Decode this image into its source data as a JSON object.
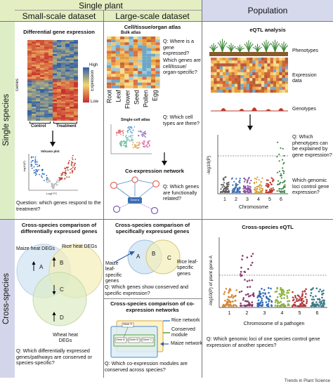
{
  "headers": {
    "single_plant": "Single plant",
    "small_scale": "Small-scale dataset",
    "large_scale": "Large-scale dataset",
    "population": "Population",
    "single_species": "Single species",
    "cross_species": "Cross-species"
  },
  "panel_deg": {
    "title": "Differential gene expression",
    "genes_label": "Genes",
    "legend_title": "Expression",
    "legend_high": "High",
    "legend_low": "Low",
    "control": "Control",
    "treatment": "Treatment",
    "volcano_title": "Volcano plot",
    "volcano_ylabel": "-log10(P)",
    "volcano_xlabel": "Log2 FC",
    "question": "Question: which genes respond to the treatment?"
  },
  "panel_atlas": {
    "title": "Cell/tissue/organ atlas",
    "bulk_label": "Bulk atlas",
    "q1": "Q: Where is a gene expressed?",
    "q2": "Which genes are cell/tissue/ organ-specific?",
    "tissues": [
      "Root",
      "Leaf",
      "Flower",
      "Seed",
      "Pollen",
      "Egg"
    ],
    "single_cell_label": "Single-cell atlas",
    "q3": "Q: Which cell types are there?",
    "coexp_title": "Co-expression network",
    "gene_a": "Gene A",
    "q4": "Q: Which genes are functionally related?"
  },
  "panel_eqtl": {
    "title": "eQTL analysis",
    "phenotypes": "Phenotypes",
    "expression_data": "Expression data",
    "genotypes": "Genotypes",
    "ylabel": "-log10(P)",
    "xlabel": "Chromosome",
    "chromosomes": [
      "1",
      "2",
      "3",
      "4",
      "5",
      "6"
    ],
    "q1": "Q: Which phenotypes can be explained by gene expression?",
    "q2": "Which genomic loci control gene expression?"
  },
  "panel_cross_deg": {
    "title": "Cross-species comparison of differentially expressed genes",
    "maize": "Maize heat DEGs",
    "rice": "Rice heat DEGs",
    "wheat": "Wheat heat DEGs",
    "regions": [
      "A",
      "B",
      "C",
      "D"
    ],
    "question": "Q: Which differentially expressed genes/pathways are conserved or species-specific?"
  },
  "panel_cross_specific": {
    "title": "Cross-species comparison of specifically expressed genes",
    "maize": "Maize leaf-specific genes",
    "rice": "Rice leaf-specific genes",
    "regions": [
      "A",
      "B",
      "C"
    ],
    "question": "Q: Which genes show conserved and specific expression?"
  },
  "panel_cross_coexp": {
    "title": "Cross-species comparison of co-expression networks",
    "genes": [
      "Gene X",
      "Gene A",
      "Gene B",
      "Gene C"
    ],
    "rice_network": "Rice network",
    "conserved_module": "Conserved module",
    "maize_network": "Maize network",
    "question": "Q: Which co-expression modules are conserved across species?"
  },
  "panel_cross_eqtl": {
    "title": "Cross-species eQTL",
    "ylabel": "-log10(P) of plant gene A",
    "xlabel": "Chromosome of a pathogen",
    "chromosomes": [
      "1",
      "2",
      "3",
      "4",
      "5",
      "6"
    ],
    "question": "Q: Which genomic loci of one species control gene expression of another species?"
  },
  "footer": "Trends in Plant Science",
  "colors": {
    "header_green": "#e3eec2",
    "header_purple": "#d6d9ec",
    "side_green": "#ddeec7",
    "side_purple": "#d3d6ea",
    "heat_high": "#2f5fa8",
    "heat_low": "#c62c2c",
    "venn_blue": "#cfe3f3",
    "venn_yellow": "#f4eeb8",
    "venn_green": "#dcebc4"
  },
  "chart_data": [
    {
      "type": "scatter",
      "title": "",
      "xlabel": "Chromosome",
      "ylabel": "-log10(P)",
      "categories": [
        "1",
        "2",
        "3",
        "4",
        "5",
        "6"
      ],
      "threshold": "dashed line",
      "peak_chromosome": "6",
      "grid": false
    },
    {
      "type": "scatter",
      "title": "",
      "xlabel": "Chromosome of a pathogen",
      "ylabel": "-log10(P) of plant gene A",
      "categories": [
        "1",
        "2",
        "3",
        "4",
        "5",
        "6"
      ],
      "threshold": "dashed line",
      "peak_chromosome": "2",
      "grid": false
    }
  ]
}
